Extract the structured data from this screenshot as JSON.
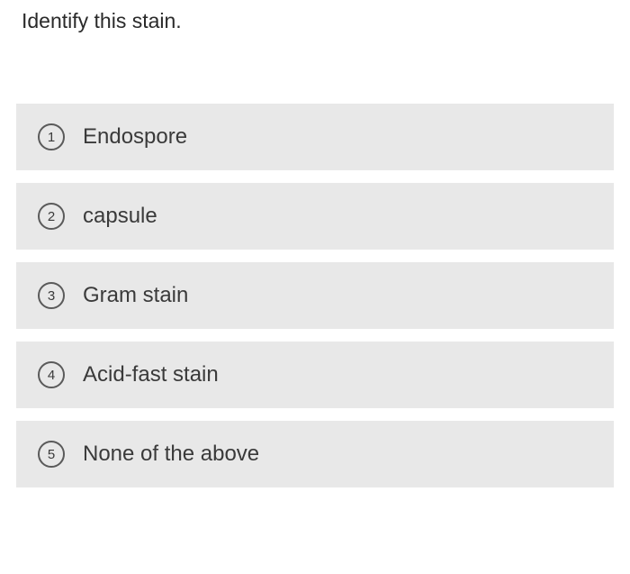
{
  "question": {
    "text": "Identify this stain."
  },
  "options": [
    {
      "number": "1",
      "label": "Endospore"
    },
    {
      "number": "2",
      "label": "capsule"
    },
    {
      "number": "3",
      "label": "Gram stain"
    },
    {
      "number": "4",
      "label": "Acid-fast stain"
    },
    {
      "number": "5",
      "label": "None of the above"
    }
  ],
  "styles": {
    "background_color": "#ffffff",
    "option_background": "#e8e8e8",
    "text_color": "#3a3a3a",
    "question_fontsize": 23,
    "option_fontsize": 24,
    "number_circle_border": "#5a5a5a"
  }
}
